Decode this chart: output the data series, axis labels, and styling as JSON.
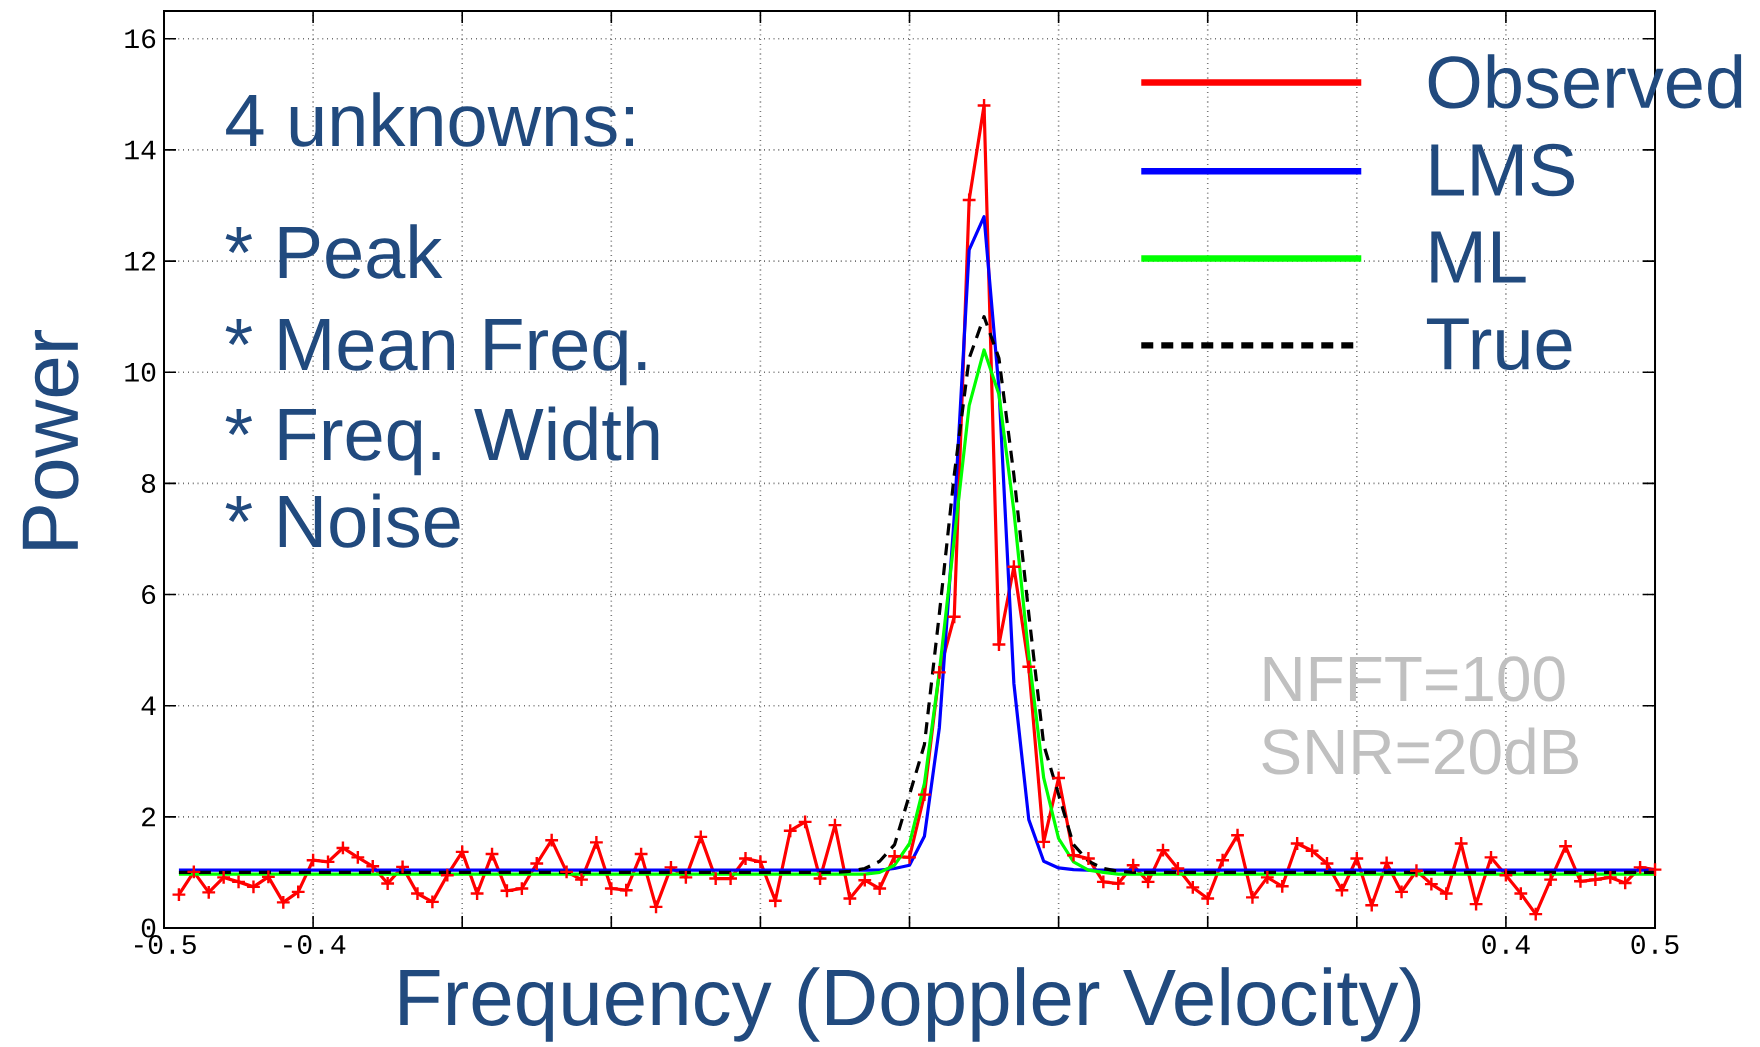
{
  "chart_data": {
    "type": "line",
    "xlabel": "Frequency (Doppler Velocity)",
    "ylabel": "Power",
    "x": [
      -0.49,
      -0.48,
      -0.47,
      -0.46,
      -0.45,
      -0.44,
      -0.43,
      -0.42,
      -0.41,
      -0.4,
      -0.39,
      -0.38,
      -0.37,
      -0.36,
      -0.35,
      -0.34,
      -0.33,
      -0.32,
      -0.31,
      -0.3,
      -0.29,
      -0.28,
      -0.27,
      -0.26,
      -0.25,
      -0.24,
      -0.23,
      -0.22,
      -0.21,
      -0.2,
      -0.19,
      -0.18,
      -0.17,
      -0.16,
      -0.15,
      -0.14,
      -0.13,
      -0.12,
      -0.11,
      -0.1,
      -0.09,
      -0.08,
      -0.07,
      -0.06,
      -0.05,
      -0.04,
      -0.03,
      -0.02,
      -0.01,
      0.0,
      0.01,
      0.02,
      0.03,
      0.04,
      0.05,
      0.06,
      0.07,
      0.08,
      0.09,
      0.1,
      0.11,
      0.12,
      0.13,
      0.14,
      0.15,
      0.16,
      0.17,
      0.18,
      0.19,
      0.2,
      0.21,
      0.22,
      0.23,
      0.24,
      0.25,
      0.26,
      0.27,
      0.28,
      0.29,
      0.3,
      0.31,
      0.32,
      0.33,
      0.34,
      0.35,
      0.36,
      0.37,
      0.38,
      0.39,
      0.4,
      0.41,
      0.42,
      0.43,
      0.44,
      0.45,
      0.46,
      0.47,
      0.48,
      0.49,
      0.5
    ],
    "series": [
      {
        "name": "Observed",
        "color": "#ff0000",
        "marker": "cross",
        "values": [
          0.6,
          1.01,
          0.64,
          0.91,
          0.83,
          0.74,
          0.92,
          0.46,
          0.65,
          1.22,
          1.19,
          1.44,
          1.27,
          1.11,
          0.8,
          1.1,
          0.62,
          0.47,
          0.95,
          1.37,
          0.62,
          1.33,
          0.67,
          0.71,
          1.16,
          1.58,
          1.01,
          0.87,
          1.54,
          0.71,
          0.68,
          1.33,
          0.38,
          1.09,
          0.91,
          1.64,
          0.89,
          0.89,
          1.25,
          1.19,
          0.49,
          1.75,
          1.91,
          0.89,
          1.85,
          0.53,
          0.86,
          0.71,
          1.29,
          1.27,
          2.4,
          4.6,
          5.6,
          13.1,
          14.8,
          5.1,
          6.5,
          4.7,
          1.55,
          2.7,
          1.31,
          1.25,
          0.83,
          0.8,
          1.13,
          0.83,
          1.4,
          1.07,
          0.73,
          0.53,
          1.22,
          1.67,
          0.55,
          0.91,
          0.75,
          1.52,
          1.39,
          1.16,
          0.68,
          1.25,
          0.41,
          1.17,
          0.65,
          1.03,
          0.79,
          0.62,
          1.52,
          0.43,
          1.27,
          0.95,
          0.62,
          0.25,
          0.87,
          1.47,
          0.84,
          0.87,
          0.91,
          0.81,
          1.09,
          1.05
        ]
      },
      {
        "name": "LMS",
        "color": "#0000ff",
        "values": [
          1.04,
          1.04,
          1.04,
          1.04,
          1.04,
          1.04,
          1.04,
          1.04,
          1.04,
          1.04,
          1.04,
          1.04,
          1.04,
          1.04,
          1.04,
          1.04,
          1.04,
          1.04,
          1.04,
          1.04,
          1.04,
          1.04,
          1.04,
          1.04,
          1.04,
          1.04,
          1.04,
          1.04,
          1.04,
          1.04,
          1.04,
          1.04,
          1.04,
          1.04,
          1.04,
          1.04,
          1.04,
          1.04,
          1.04,
          1.04,
          1.04,
          1.04,
          1.04,
          1.04,
          1.04,
          1.04,
          1.04,
          1.04,
          1.07,
          1.13,
          1.65,
          3.6,
          7.4,
          12.2,
          12.8,
          9.7,
          4.4,
          1.95,
          1.2,
          1.08,
          1.05,
          1.04,
          1.04,
          1.04,
          1.04,
          1.04,
          1.04,
          1.04,
          1.04,
          1.04,
          1.04,
          1.04,
          1.04,
          1.04,
          1.04,
          1.04,
          1.04,
          1.04,
          1.04,
          1.04,
          1.04,
          1.04,
          1.04,
          1.04,
          1.04,
          1.04,
          1.04,
          1.04,
          1.04,
          1.04,
          1.04,
          1.04,
          1.04,
          1.04,
          1.04,
          1.04,
          1.04,
          1.04,
          1.04,
          1.04
        ]
      },
      {
        "name": "ML",
        "color": "#00ff00",
        "values": [
          0.97,
          0.97,
          0.97,
          0.97,
          0.97,
          0.97,
          0.97,
          0.97,
          0.97,
          0.97,
          0.97,
          0.97,
          0.97,
          0.97,
          0.97,
          0.97,
          0.97,
          0.97,
          0.97,
          0.97,
          0.97,
          0.97,
          0.97,
          0.97,
          0.97,
          0.97,
          0.97,
          0.97,
          0.97,
          0.97,
          0.97,
          0.97,
          0.97,
          0.97,
          0.97,
          0.97,
          0.97,
          0.97,
          0.97,
          0.97,
          0.97,
          0.97,
          0.97,
          0.97,
          0.97,
          0.97,
          0.97,
          1.0,
          1.13,
          1.52,
          2.6,
          4.6,
          7.0,
          9.4,
          10.4,
          9.6,
          7.5,
          4.9,
          2.7,
          1.61,
          1.19,
          1.04,
          1.0,
          0.97,
          0.97,
          0.97,
          0.97,
          0.97,
          0.97,
          0.97,
          0.97,
          0.97,
          0.97,
          0.97,
          0.97,
          0.97,
          0.97,
          0.97,
          0.97,
          0.97,
          0.97,
          0.97,
          0.97,
          0.97,
          0.97,
          0.97,
          0.97,
          0.97,
          0.97,
          0.97,
          0.97,
          0.97,
          0.97,
          0.97,
          0.97,
          0.97,
          0.97,
          0.97,
          0.97,
          0.97
        ]
      },
      {
        "name": "True",
        "color": "#000000",
        "line_style": "dashed",
        "values": [
          1.0,
          1.0,
          1.0,
          1.0,
          1.0,
          1.0,
          1.0,
          1.0,
          1.0,
          1.0,
          1.0,
          1.0,
          1.0,
          1.0,
          1.0,
          1.0,
          1.0,
          1.0,
          1.0,
          1.0,
          1.0,
          1.0,
          1.0,
          1.0,
          1.0,
          1.0,
          1.0,
          1.0,
          1.0,
          1.0,
          1.0,
          1.0,
          1.0,
          1.0,
          1.0,
          1.0,
          1.0,
          1.0,
          1.0,
          1.0,
          1.0,
          1.0,
          1.0,
          1.0,
          1.0,
          1.02,
          1.07,
          1.2,
          1.5,
          2.4,
          3.3,
          5.65,
          8.15,
          10.25,
          11.0,
          10.25,
          8.15,
          5.65,
          3.3,
          2.4,
          1.5,
          1.2,
          1.07,
          1.02,
          1.0,
          1.0,
          1.0,
          1.0,
          1.0,
          1.0,
          1.0,
          1.0,
          1.0,
          1.0,
          1.0,
          1.0,
          1.0,
          1.0,
          1.0,
          1.0,
          1.0,
          1.0,
          1.0,
          1.0,
          1.0,
          1.0,
          1.0,
          1.0,
          1.0,
          1.0,
          1.0,
          1.0,
          1.0,
          1.0,
          1.0,
          1.0,
          1.0,
          1.0,
          1.0,
          1.0
        ]
      }
    ],
    "xlim": [
      -0.5,
      0.5
    ],
    "ylim": [
      0,
      16.5
    ],
    "xticks": [
      {
        "value": -0.5,
        "label": "-0.5"
      },
      {
        "value": -0.4,
        "label": "-0.4"
      },
      {
        "value": -0.3,
        "label": null
      },
      {
        "value": -0.2,
        "label": null
      },
      {
        "value": -0.1,
        "label": null
      },
      {
        "value": 0,
        "label": null
      },
      {
        "value": 0.1,
        "label": null
      },
      {
        "value": 0.2,
        "label": null
      },
      {
        "value": 0.3,
        "label": null
      },
      {
        "value": 0.4,
        "label": "0.4"
      },
      {
        "value": 0.5,
        "label": "0.5"
      }
    ],
    "yticks": [
      0,
      2,
      4,
      6,
      8,
      10,
      12,
      14,
      16
    ],
    "grid": true,
    "legend": "top right",
    "annotations": [
      "4 unknowns:",
      "* Peak",
      "* Mean Freq.",
      "* Freq. Width",
      "* Noise",
      "NFFT=100",
      "SNR=20dB"
    ]
  }
}
